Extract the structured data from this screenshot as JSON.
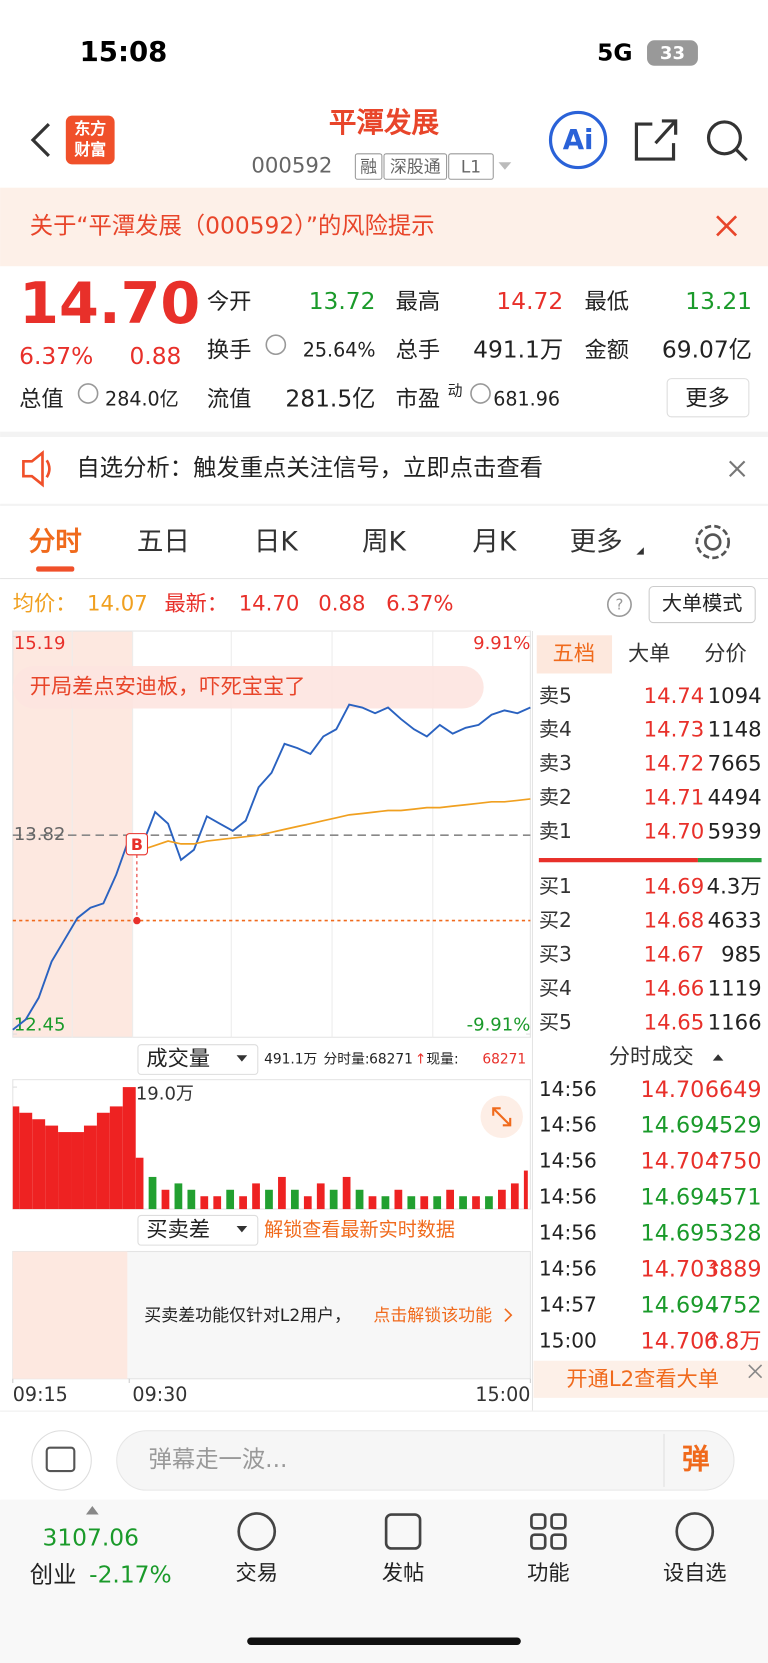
{
  "status_bar": {
    "time": "15:08",
    "network": "5G",
    "battery": "33"
  },
  "header": {
    "logo": [
      "东方",
      "财富"
    ],
    "title": "平潭发展",
    "code": "000592",
    "tags": [
      "融",
      "深股通",
      "L1"
    ],
    "ai": "Ai"
  },
  "risk_banner": "关于“平潭发展（000592）”的风险提示",
  "quote": {
    "price": "14.70",
    "change_pct": "6.37%",
    "change": "0.88",
    "fields": [
      [
        {
          "label": "今开",
          "value": "13.72"
        },
        {
          "label": "最高",
          "value": "14.72"
        },
        {
          "label": "最低",
          "value": "13.21"
        }
      ],
      [
        {
          "label": "换手",
          "value": "25.64%"
        },
        {
          "label": "总手",
          "value": "491.1万"
        },
        {
          "label": "金额",
          "value": "69.07亿"
        }
      ],
      [
        {
          "label": "总值",
          "value": "284.0亿"
        },
        {
          "label": "流值",
          "value": "281.5亿"
        },
        {
          "label": "市盈",
          "sup": "动",
          "value": "681.96"
        }
      ]
    ],
    "more": "更多"
  },
  "notice": "自选分析：触发重点关注信号，立即点击查看",
  "tabs": [
    "分时",
    "五日",
    "日K",
    "周K",
    "月K",
    "更多"
  ],
  "info": {
    "avg_label": "均价：",
    "avg": "14.07",
    "last_label": "最新：",
    "last": "14.70",
    "change": "0.88",
    "change_pct": "6.37%",
    "mode": "大单模式"
  },
  "chart_data": [
    {
      "type": "line",
      "annotation": "开局差点安迪板，吓死宝宝了",
      "marker": "B",
      "xlim": [
        0,
        40
      ],
      "xticks": [
        {
          "value": 0,
          "label": "09:15"
        },
        {
          "value": 9,
          "label": "09:30"
        },
        {
          "value": 40,
          "label": "15:00"
        }
      ],
      "ylim": [
        12.45,
        15.19
      ],
      "yticks": [
        15.19,
        13.82,
        12.45
      ],
      "y2lim": [
        -9.91,
        9.91
      ],
      "y2ticks": [
        {
          "value": 9.91,
          "label": "9.91%"
        },
        {
          "value": -9.91,
          "label": "-9.91%"
        }
      ],
      "series": [
        {
          "color": "#2a62c0",
          "values": [
            12.48,
            12.55,
            12.7,
            12.95,
            13.1,
            13.25,
            13.32,
            13.35,
            13.55,
            13.8,
            13.75,
            13.98,
            13.9,
            13.65,
            13.72,
            13.95,
            13.9,
            13.85,
            13.92,
            14.15,
            14.25,
            14.45,
            14.42,
            14.38,
            14.5,
            14.55,
            14.72,
            14.7,
            14.66,
            14.7,
            14.62,
            14.55,
            14.5,
            14.58,
            14.52,
            14.56,
            14.58,
            14.65,
            14.68,
            14.66,
            14.7
          ]
        },
        {
          "color": "#f0a020",
          "values": [
            null,
            null,
            null,
            null,
            null,
            null,
            null,
            null,
            null,
            null,
            13.72,
            13.75,
            13.78,
            13.76,
            13.76,
            13.78,
            13.79,
            13.8,
            13.81,
            13.82,
            13.84,
            13.86,
            13.88,
            13.9,
            13.92,
            13.94,
            13.96,
            13.97,
            13.98,
            13.99,
            13.99,
            14.0,
            14.01,
            14.01,
            14.02,
            14.03,
            14.04,
            14.05,
            14.05,
            14.06,
            14.07
          ]
        }
      ]
    },
    {
      "type": "bar",
      "title": "成交量",
      "ylim": [
        0,
        19.0
      ],
      "yticks": [
        {
          "value": 19.0,
          "label": "19.0万"
        }
      ],
      "values": [
        16,
        15,
        14,
        13,
        12,
        12,
        13,
        15,
        16,
        19.0,
        8,
        5,
        3,
        4,
        3,
        2,
        2,
        3,
        2,
        4,
        3,
        5,
        3,
        2,
        4,
        3,
        5,
        3,
        2,
        2,
        3,
        2,
        2,
        2,
        3,
        2,
        2,
        2,
        3,
        4,
        6
      ],
      "colors": [
        "red",
        "red",
        "red",
        "red",
        "red",
        "red",
        "red",
        "red",
        "red",
        "red",
        "red",
        "green",
        "red",
        "green",
        "green",
        "red",
        "red",
        "green",
        "red",
        "red",
        "green",
        "red",
        "green",
        "red",
        "red",
        "green",
        "red",
        "green",
        "red",
        "green",
        "red",
        "green",
        "red",
        "green",
        "red",
        "green",
        "red",
        "green",
        "red",
        "red",
        "red"
      ]
    }
  ],
  "volume_info": {
    "total": "491.1万",
    "period_label": "分时量:",
    "period": "68271",
    "arrow": "↑",
    "current_label": "现量:",
    "current": "68271"
  },
  "diff_panel": {
    "title": "买卖差",
    "unlock": "解锁查看最新实时数据",
    "note": "买卖差功能仅针对L2用户，",
    "link": "点击解锁该功能"
  },
  "order_book": {
    "tabs": [
      "五档",
      "大单",
      "分价"
    ],
    "asks": [
      {
        "label": "卖5",
        "price": "14.74",
        "volume": "1094"
      },
      {
        "label": "卖4",
        "price": "14.73",
        "volume": "1148"
      },
      {
        "label": "卖3",
        "price": "14.72",
        "volume": "7665"
      },
      {
        "label": "卖2",
        "price": "14.71",
        "volume": "4494"
      },
      {
        "label": "卖1",
        "price": "14.70",
        "volume": "5939"
      }
    ],
    "bids": [
      {
        "label": "买1",
        "price": "14.69",
        "volume": "4.3万"
      },
      {
        "label": "买2",
        "price": "14.68",
        "volume": "4633"
      },
      {
        "label": "买3",
        "price": "14.67",
        "volume": "985"
      },
      {
        "label": "买4",
        "price": "14.66",
        "volume": "1119"
      },
      {
        "label": "买5",
        "price": "14.65",
        "volume": "1166"
      }
    ]
  },
  "trades": {
    "title": "分时成交",
    "rows": [
      {
        "time": "14:56",
        "price": "14.70",
        "dir": null,
        "volume": "6649",
        "color": "red"
      },
      {
        "time": "14:56",
        "price": "14.69",
        "dir": "↓",
        "volume": "4529",
        "color": "green"
      },
      {
        "time": "14:56",
        "price": "14.70",
        "dir": "↑",
        "volume": "4750",
        "color": "red"
      },
      {
        "time": "14:56",
        "price": "14.69",
        "dir": "↓",
        "volume": "4571",
        "color": "green"
      },
      {
        "time": "14:56",
        "price": "14.69",
        "dir": null,
        "volume": "5328",
        "color": "green"
      },
      {
        "time": "14:56",
        "price": "14.70",
        "dir": "↑",
        "volume": "3889",
        "color": "red"
      },
      {
        "time": "14:57",
        "price": "14.69",
        "dir": "↓",
        "volume": "4752",
        "color": "green"
      },
      {
        "time": "15:00",
        "price": "14.70",
        "dir": "↑",
        "volume": "6.8万",
        "color": "red"
      }
    ],
    "l2": "开通L2查看大单"
  },
  "comment": {
    "placeholder": "弹幕走一波...",
    "button": "弹"
  },
  "bottom_nav": {
    "index_value": "3107.06",
    "index_name": "创业",
    "index_change": "-2.17%",
    "items": [
      "交易",
      "发帖",
      "功能",
      "设自选"
    ]
  }
}
